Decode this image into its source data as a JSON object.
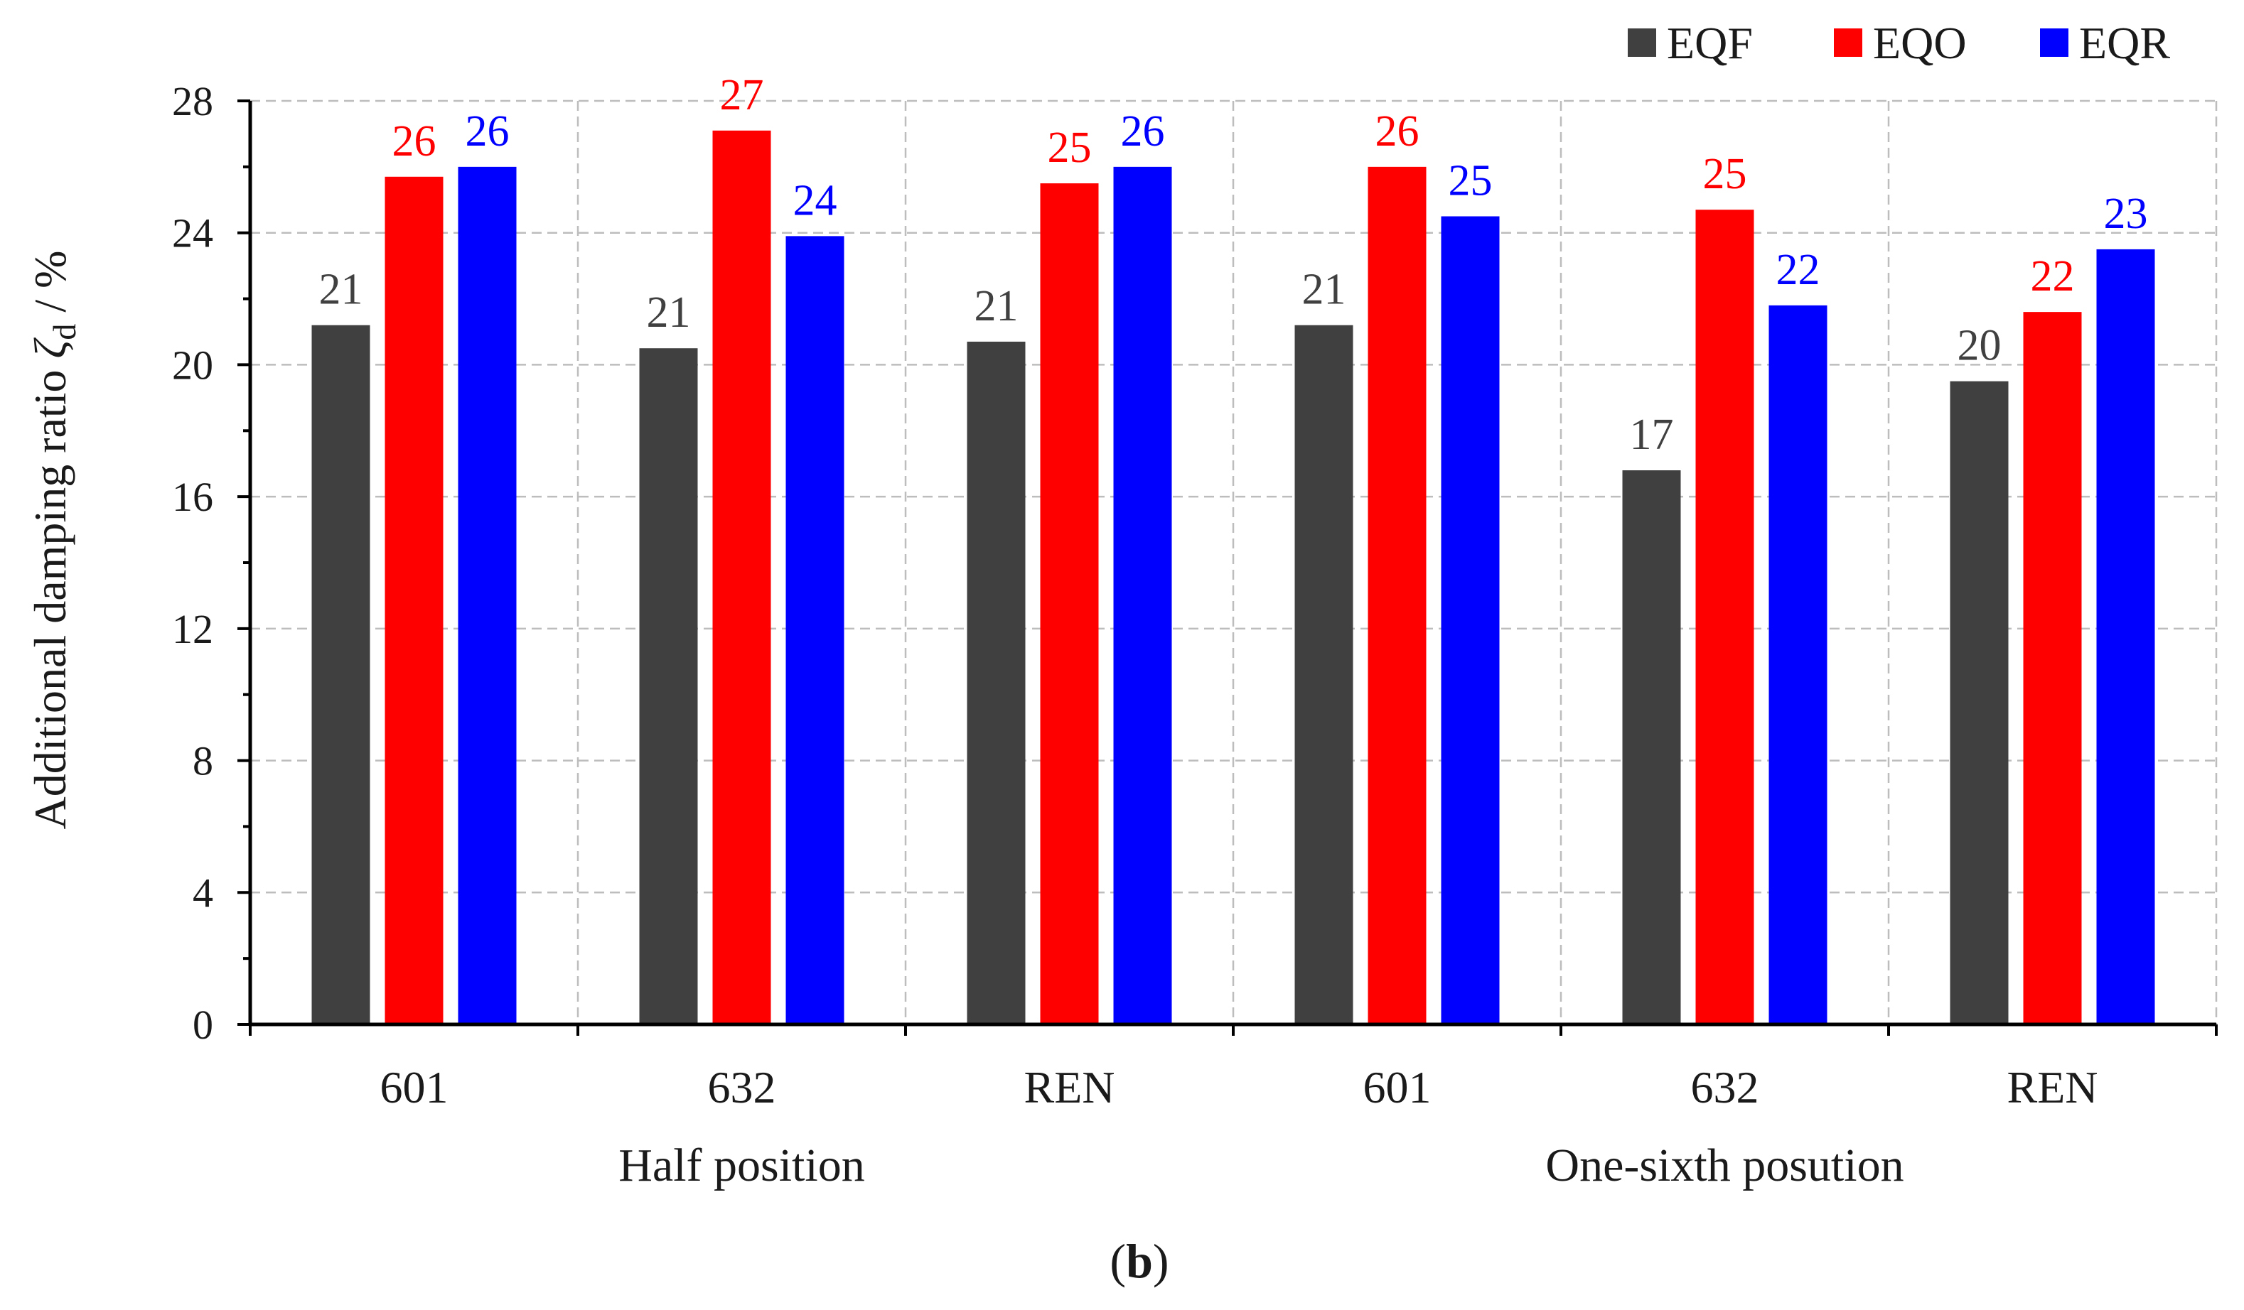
{
  "chart_data": {
    "type": "bar",
    "title": "",
    "categories": [
      "601",
      "632",
      "REN",
      "601",
      "632",
      "REN"
    ],
    "groups": [
      {
        "label": "Half position"
      },
      {
        "label": "One-sixth posution"
      }
    ],
    "series": [
      {
        "name": "EQF",
        "color": "#404040",
        "label_color": "#404040",
        "values": [
          21.2,
          20.5,
          20.7,
          21.2,
          16.8,
          19.5
        ],
        "labels": [
          "21",
          "21",
          "21",
          "21",
          "17",
          "20"
        ]
      },
      {
        "name": "EQO",
        "color": "#ff0000",
        "label_color": "#ff0000",
        "values": [
          25.7,
          27.1,
          25.5,
          26.0,
          24.7,
          21.6
        ],
        "labels": [
          "26",
          "27",
          "25",
          "26",
          "25",
          "22"
        ]
      },
      {
        "name": "EQR",
        "color": "#0000ff",
        "label_color": "#0000ff",
        "values": [
          26.0,
          23.9,
          26.0,
          24.5,
          21.8,
          23.5
        ],
        "labels": [
          "26",
          "24",
          "26",
          "25",
          "22",
          "23"
        ]
      }
    ],
    "ylabel": "Additional damping ratio",
    "ylabel_symbol": "ζ",
    "ylabel_subscript": "d",
    "ylabel_unit": " / %",
    "ylim": [
      0,
      28
    ],
    "yticks": [
      0,
      4,
      8,
      12,
      16,
      20,
      24,
      28
    ],
    "grid": true,
    "legend": "top-right",
    "caption_open": "(",
    "caption_letter": "b",
    "caption_close": ")"
  }
}
